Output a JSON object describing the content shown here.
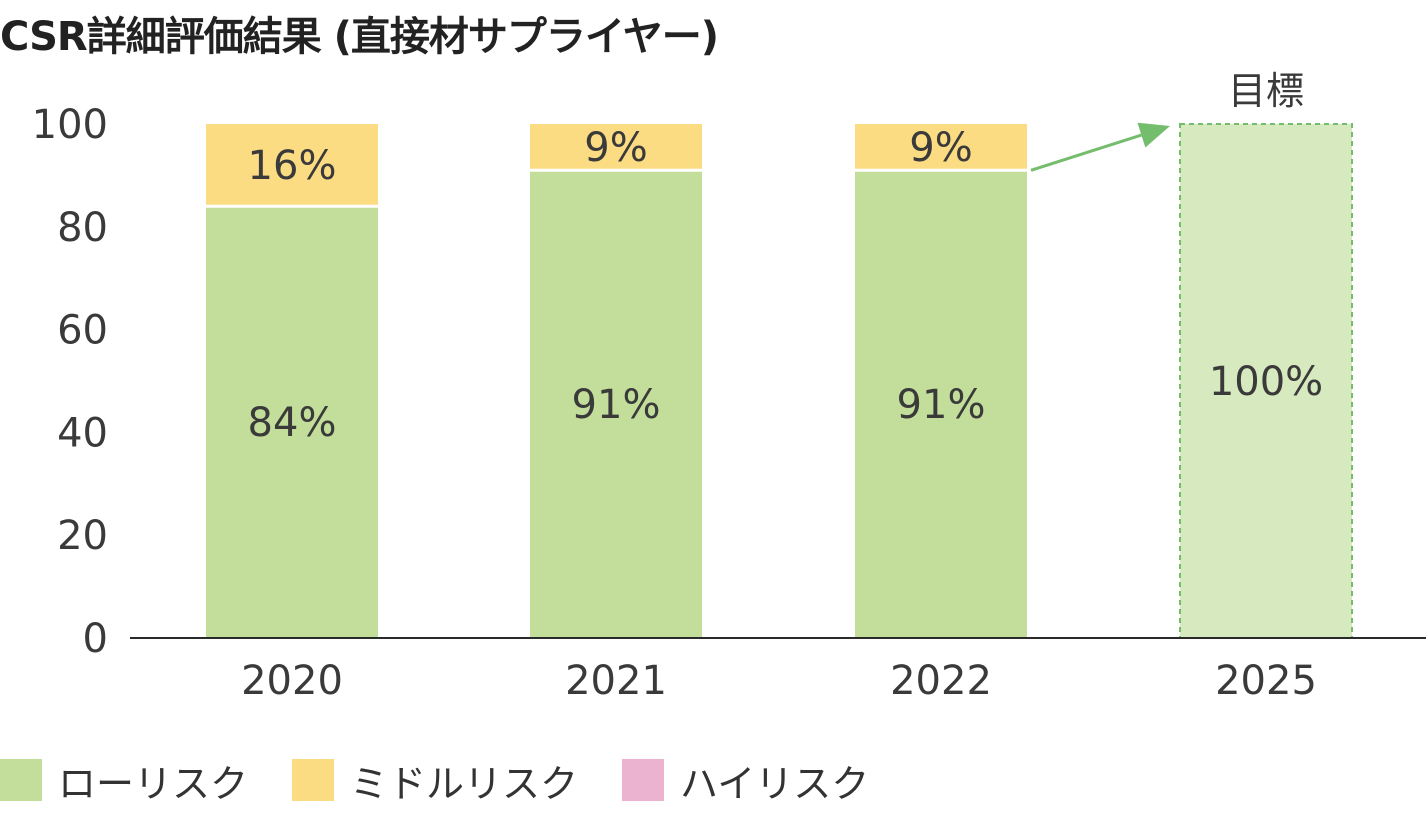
{
  "title": "CSR詳細評価結果 (直接材サプライヤー)",
  "chart_data": {
    "type": "bar",
    "stacked": true,
    "title": "CSR詳細評価結果 (直接材サプライヤー)",
    "categories": [
      "2020",
      "2021",
      "2022",
      "2025"
    ],
    "series": [
      {
        "name": "ローリスク",
        "color": "#c2de9a",
        "values": [
          84,
          91,
          91,
          100
        ],
        "labels": [
          "84%",
          "91%",
          "91%",
          "100%"
        ]
      },
      {
        "name": "ミドルリスク",
        "color": "#fbdc83",
        "values": [
          16,
          9,
          9,
          0
        ],
        "labels": [
          "16%",
          "9%",
          "9%",
          ""
        ]
      },
      {
        "name": "ハイリスク",
        "color": "#ebb3cf",
        "values": [
          0,
          0,
          0,
          0
        ],
        "labels": [
          "",
          "",
          "",
          ""
        ]
      }
    ],
    "target_category": "2025",
    "target_label": "目標",
    "target_color": "#d6e9bf",
    "arrow_color": "#74bd6d",
    "yticks": [
      0,
      20,
      40,
      60,
      80,
      100
    ],
    "ylim": [
      0,
      100
    ],
    "grid": false,
    "legend_position": "bottom-left"
  }
}
